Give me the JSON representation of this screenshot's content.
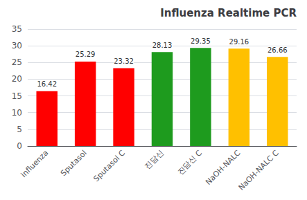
{
  "chart_data": {
    "type": "bar",
    "title": "Influenza Realtime PCR",
    "categories": [
      "influenza",
      "Sputasol",
      "Sputasol C",
      "진담신",
      "진담신 C",
      "NaOH-NALC",
      "NaOH-NALC C"
    ],
    "values": [
      16.42,
      25.29,
      23.32,
      28.13,
      29.35,
      29.16,
      26.66
    ],
    "colors": [
      "#FF0000",
      "#FF0000",
      "#FF0000",
      "#1E9B1E",
      "#1E9B1E",
      "#FFC000",
      "#FFC000"
    ],
    "ylim": [
      0,
      35
    ],
    "yticks": [
      0,
      5,
      10,
      15,
      20,
      25,
      30,
      35
    ],
    "grid": true,
    "data_labels": true
  }
}
